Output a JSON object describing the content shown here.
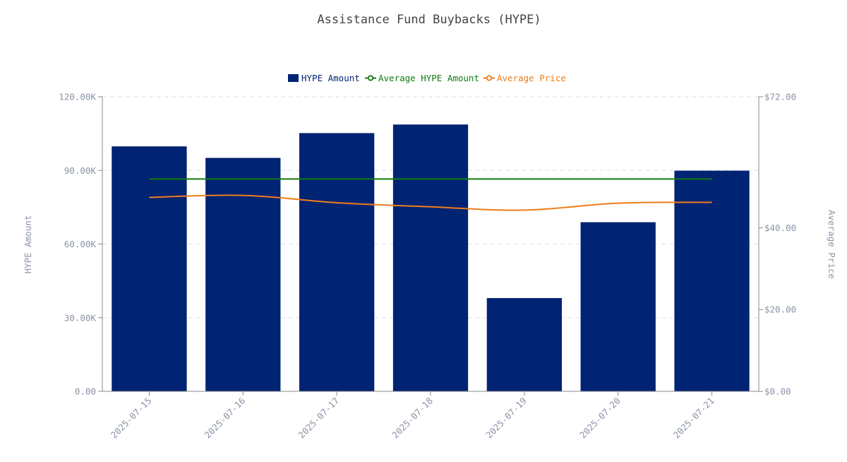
{
  "chart_data": {
    "type": "bar",
    "title": "Assistance Fund Buybacks (HYPE)",
    "categories": [
      "2025-07-15",
      "2025-07-16",
      "2025-07-17",
      "2025-07-18",
      "2025-07-19",
      "2025-07-20",
      "2025-07-21"
    ],
    "series": [
      {
        "name": "HYPE Amount",
        "type": "bar",
        "axis": "left",
        "color": "#002373",
        "values": [
          99800,
          95100,
          105200,
          108700,
          38000,
          68900,
          89900
        ]
      },
      {
        "name": "Average HYPE Amount",
        "type": "line",
        "axis": "left",
        "color": "#107a10",
        "values": [
          86500,
          86500,
          86500,
          86500,
          86500,
          86500,
          86500
        ]
      },
      {
        "name": "Average Price",
        "type": "line",
        "axis": "right",
        "color": "#f07d1a",
        "values": [
          47.4,
          47.9,
          46.1,
          45.1,
          44.3,
          46.0,
          46.2
        ]
      }
    ],
    "ylabel": "HYPE Amount",
    "y2label": "Average Price",
    "ylim": [
      0,
      120000
    ],
    "y2lim": [
      0,
      72
    ],
    "yticks": [
      "0.00",
      "30.00K",
      "60.00K",
      "90.00K",
      "120.00K"
    ],
    "yticks_values": [
      0,
      30000,
      60000,
      90000,
      120000
    ],
    "y2ticks": [
      "$0.00",
      "$20.00",
      "$40.00",
      "$72.00"
    ],
    "y2ticks_values": [
      0,
      20,
      40,
      72
    ],
    "grid": true,
    "legend_position": "top-center"
  }
}
